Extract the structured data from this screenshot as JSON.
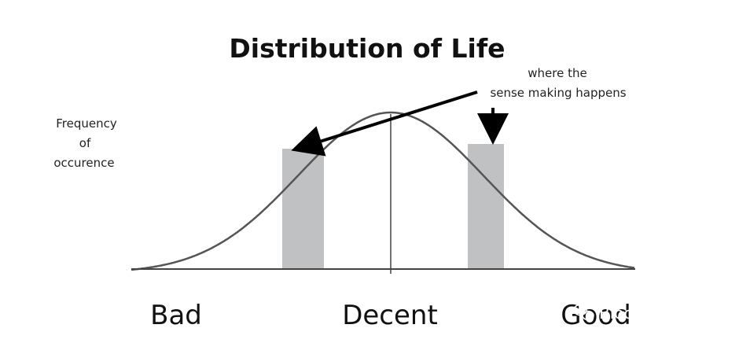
{
  "title": "Distribution of Life",
  "y_axis_label": [
    "Frequency",
    "of",
    "occurence"
  ],
  "annotation": [
    "where the",
    "sense making happens"
  ],
  "x_labels": {
    "left": "Bad",
    "center": "Decent",
    "right": "Good"
  },
  "watermark": "Block unicorn",
  "colors": {
    "curve": "#555555",
    "bars": "#bfc1c3",
    "axis": "#444444",
    "arrow": "#000000"
  }
}
